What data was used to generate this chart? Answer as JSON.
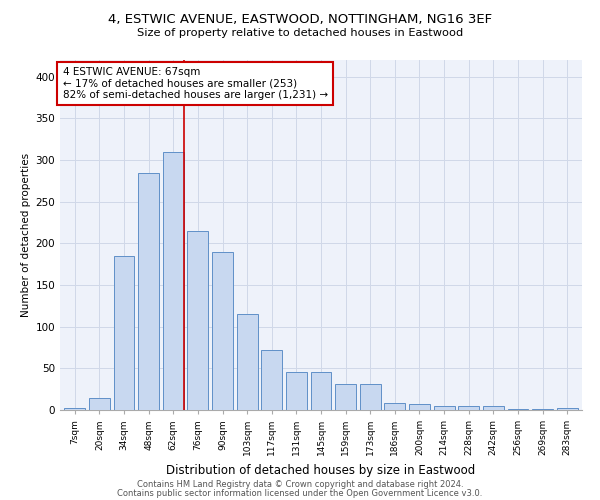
{
  "title1": "4, ESTWIC AVENUE, EASTWOOD, NOTTINGHAM, NG16 3EF",
  "title2": "Size of property relative to detached houses in Eastwood",
  "xlabel": "Distribution of detached houses by size in Eastwood",
  "ylabel": "Number of detached properties",
  "categories": [
    "7sqm",
    "20sqm",
    "34sqm",
    "48sqm",
    "62sqm",
    "76sqm",
    "90sqm",
    "103sqm",
    "117sqm",
    "131sqm",
    "145sqm",
    "159sqm",
    "173sqm",
    "186sqm",
    "200sqm",
    "214sqm",
    "228sqm",
    "242sqm",
    "256sqm",
    "269sqm",
    "283sqm"
  ],
  "values": [
    2,
    14,
    185,
    285,
    310,
    215,
    190,
    115,
    72,
    46,
    46,
    31,
    31,
    9,
    7,
    5,
    5,
    5,
    1,
    1,
    2
  ],
  "bar_color": "#c8d8f0",
  "bar_edge_color": "#6090c8",
  "grid_color": "#d0d8e8",
  "bg_color": "#eef2fa",
  "annotation_text": "4 ESTWIC AVENUE: 67sqm\n← 17% of detached houses are smaller (253)\n82% of semi-detached houses are larger (1,231) →",
  "annotation_box_edge": "#cc0000",
  "vline_color": "#cc0000",
  "vline_x": 4.42,
  "ylim": [
    0,
    420
  ],
  "yticks": [
    0,
    50,
    100,
    150,
    200,
    250,
    300,
    350,
    400
  ],
  "footer1": "Contains HM Land Registry data © Crown copyright and database right 2024.",
  "footer2": "Contains public sector information licensed under the Open Government Licence v3.0."
}
